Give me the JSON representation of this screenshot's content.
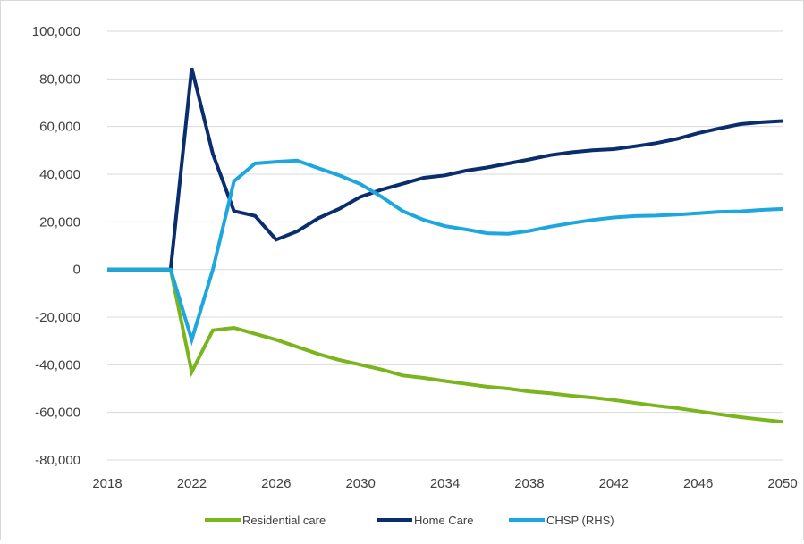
{
  "chart_data": {
    "type": "line",
    "title": "",
    "xlabel": "",
    "ylabel": "",
    "xlim": [
      2018,
      2050
    ],
    "ylim": [
      -80000,
      100000
    ],
    "x_ticks": [
      2018,
      2022,
      2026,
      2030,
      2034,
      2038,
      2042,
      2046,
      2050
    ],
    "y_ticks": [
      -80000,
      -60000,
      -40000,
      -20000,
      0,
      20000,
      40000,
      60000,
      80000,
      100000
    ],
    "y_tick_labels": [
      "-80,000",
      "-60,000",
      "-40,000",
      "-20,000",
      "0",
      "20,000",
      "40,000",
      "60,000",
      "80,000",
      "100,000"
    ],
    "grid": "horizontal",
    "legend_position": "bottom",
    "x": [
      2018,
      2019,
      2020,
      2021,
      2022,
      2023,
      2024,
      2025,
      2026,
      2027,
      2028,
      2029,
      2030,
      2031,
      2032,
      2033,
      2034,
      2035,
      2036,
      2037,
      2038,
      2039,
      2040,
      2041,
      2042,
      2043,
      2044,
      2045,
      2046,
      2047,
      2048,
      2049,
      2050
    ],
    "series": [
      {
        "name": "Residential care",
        "color": "#7ab51d",
        "values": [
          0,
          0,
          0,
          0,
          -43000,
          -25500,
          -24500,
          -27000,
          -29500,
          -32500,
          -35500,
          -38000,
          -40000,
          -42000,
          -44500,
          -45500,
          -46800,
          -48000,
          -49200,
          -50000,
          -51200,
          -52000,
          -53000,
          -53800,
          -54800,
          -56000,
          -57200,
          -58200,
          -59500,
          -60800,
          -62000,
          -63000,
          -64000
        ]
      },
      {
        "name": "Home Care",
        "color": "#0a2d6e",
        "values": [
          0,
          0,
          0,
          0,
          84500,
          48500,
          24500,
          22500,
          12500,
          16000,
          21500,
          25500,
          30500,
          33500,
          36000,
          38500,
          39500,
          41500,
          42800,
          44500,
          46200,
          48000,
          49200,
          50000,
          50500,
          51700,
          53000,
          54800,
          57200,
          59200,
          61000,
          61800,
          62300
        ]
      },
      {
        "name": "CHSP (RHS)",
        "color": "#1ea7df",
        "values": [
          0,
          0,
          0,
          0,
          -29500,
          0,
          37000,
          44500,
          45200,
          45700,
          42500,
          39500,
          35800,
          30500,
          24500,
          20800,
          18200,
          16800,
          15200,
          15000,
          16200,
          18000,
          19500,
          20800,
          21800,
          22400,
          22600,
          23000,
          23600,
          24200,
          24400,
          25000,
          25400
        ]
      }
    ]
  }
}
